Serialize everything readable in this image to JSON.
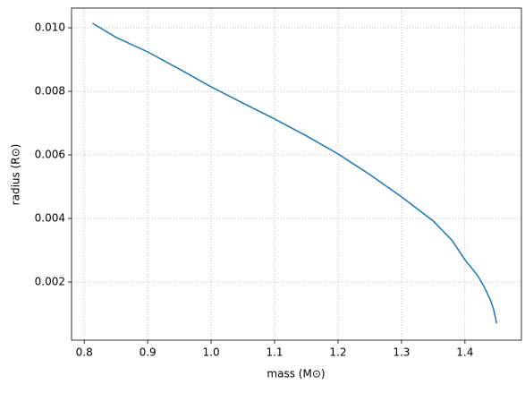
{
  "chart_data": {
    "type": "line",
    "xlabel": "mass (M⊙)",
    "ylabel": "radius (R⊙)",
    "x": [
      0.813,
      0.85,
      0.9,
      0.95,
      1.0,
      1.05,
      1.1,
      1.15,
      1.2,
      1.25,
      1.3,
      1.35,
      1.38,
      1.4,
      1.42,
      1.43,
      1.44,
      1.445,
      1.45
    ],
    "series": [
      {
        "color": "#1f77b4",
        "values": [
          0.01014,
          0.0097,
          0.00924,
          0.0087,
          0.00814,
          0.00763,
          0.00713,
          0.0066,
          0.00603,
          0.00538,
          0.00468,
          0.00392,
          0.0033,
          0.0027,
          0.0022,
          0.00186,
          0.00144,
          0.00115,
          0.0007
        ]
      }
    ],
    "xlim": [
      0.78,
      1.489
    ],
    "ylim": [
      0.00017,
      0.01062
    ],
    "xticks": [
      0.8,
      0.9,
      {
        "value": 1,
        "label": "1.0"
      },
      1.1,
      1.2,
      1.3,
      1.4
    ],
    "yticks": [
      0.002,
      0.004,
      0.006,
      0.008,
      {
        "value": 0.01,
        "label": "0.010"
      }
    ],
    "grid": true
  }
}
